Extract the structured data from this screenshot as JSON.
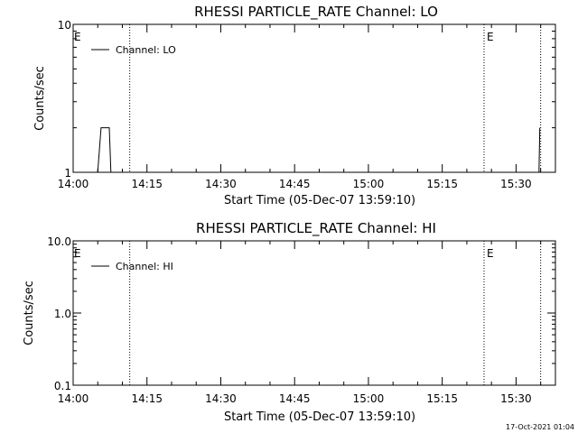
{
  "footer": {
    "timestamp": "17-Oct-2021 01:04"
  },
  "chart_data": [
    {
      "type": "line",
      "title": "RHESSI PARTICLE_RATE Channel: LO",
      "xlabel": "Start Time (05-Dec-07 13:59:10)",
      "ylabel": "Counts/sec",
      "yscale": "log",
      "ylim": [
        1,
        10
      ],
      "xlim": [
        "14:00",
        "15:38"
      ],
      "x_ticks": [
        "14:00",
        "14:15",
        "14:30",
        "14:45",
        "15:00",
        "15:15",
        "15:30"
      ],
      "y_ticks": [
        "1",
        "10"
      ],
      "legend": {
        "position": "top-left",
        "entries": [
          "Channel: LO"
        ]
      },
      "event_markers": [
        {
          "time": "14:11:30",
          "label": ""
        },
        {
          "time": "15:23:30",
          "label": "E"
        },
        {
          "time": "15:35:00",
          "label": ""
        }
      ],
      "start_marker_label": "E",
      "series": [
        {
          "name": "Channel: LO",
          "segments": [
            [
              [
                "14:05:00",
                1
              ],
              [
                "14:05:40",
                2
              ],
              [
                "14:07:20",
                2
              ],
              [
                "14:07:40",
                1
              ]
            ],
            [
              [
                "15:34:40",
                1
              ],
              [
                "15:34:50",
                2
              ]
            ]
          ]
        }
      ]
    },
    {
      "type": "line",
      "title": "RHESSI PARTICLE_RATE Channel: HI",
      "xlabel": "Start Time (05-Dec-07 13:59:10)",
      "ylabel": "Counts/sec",
      "yscale": "log",
      "ylim": [
        0.1,
        10
      ],
      "xlim": [
        "14:00",
        "15:38"
      ],
      "x_ticks": [
        "14:00",
        "14:15",
        "14:30",
        "14:45",
        "15:00",
        "15:15",
        "15:30"
      ],
      "y_ticks": [
        "0.1",
        "1.0",
        "10.0"
      ],
      "legend": {
        "position": "top-left",
        "entries": [
          "Channel: HI"
        ]
      },
      "event_markers": [
        {
          "time": "14:11:30",
          "label": ""
        },
        {
          "time": "15:23:30",
          "label": "E"
        },
        {
          "time": "15:35:00",
          "label": ""
        }
      ],
      "start_marker_label": "E",
      "series": [
        {
          "name": "Channel: HI",
          "segments": []
        }
      ]
    }
  ]
}
